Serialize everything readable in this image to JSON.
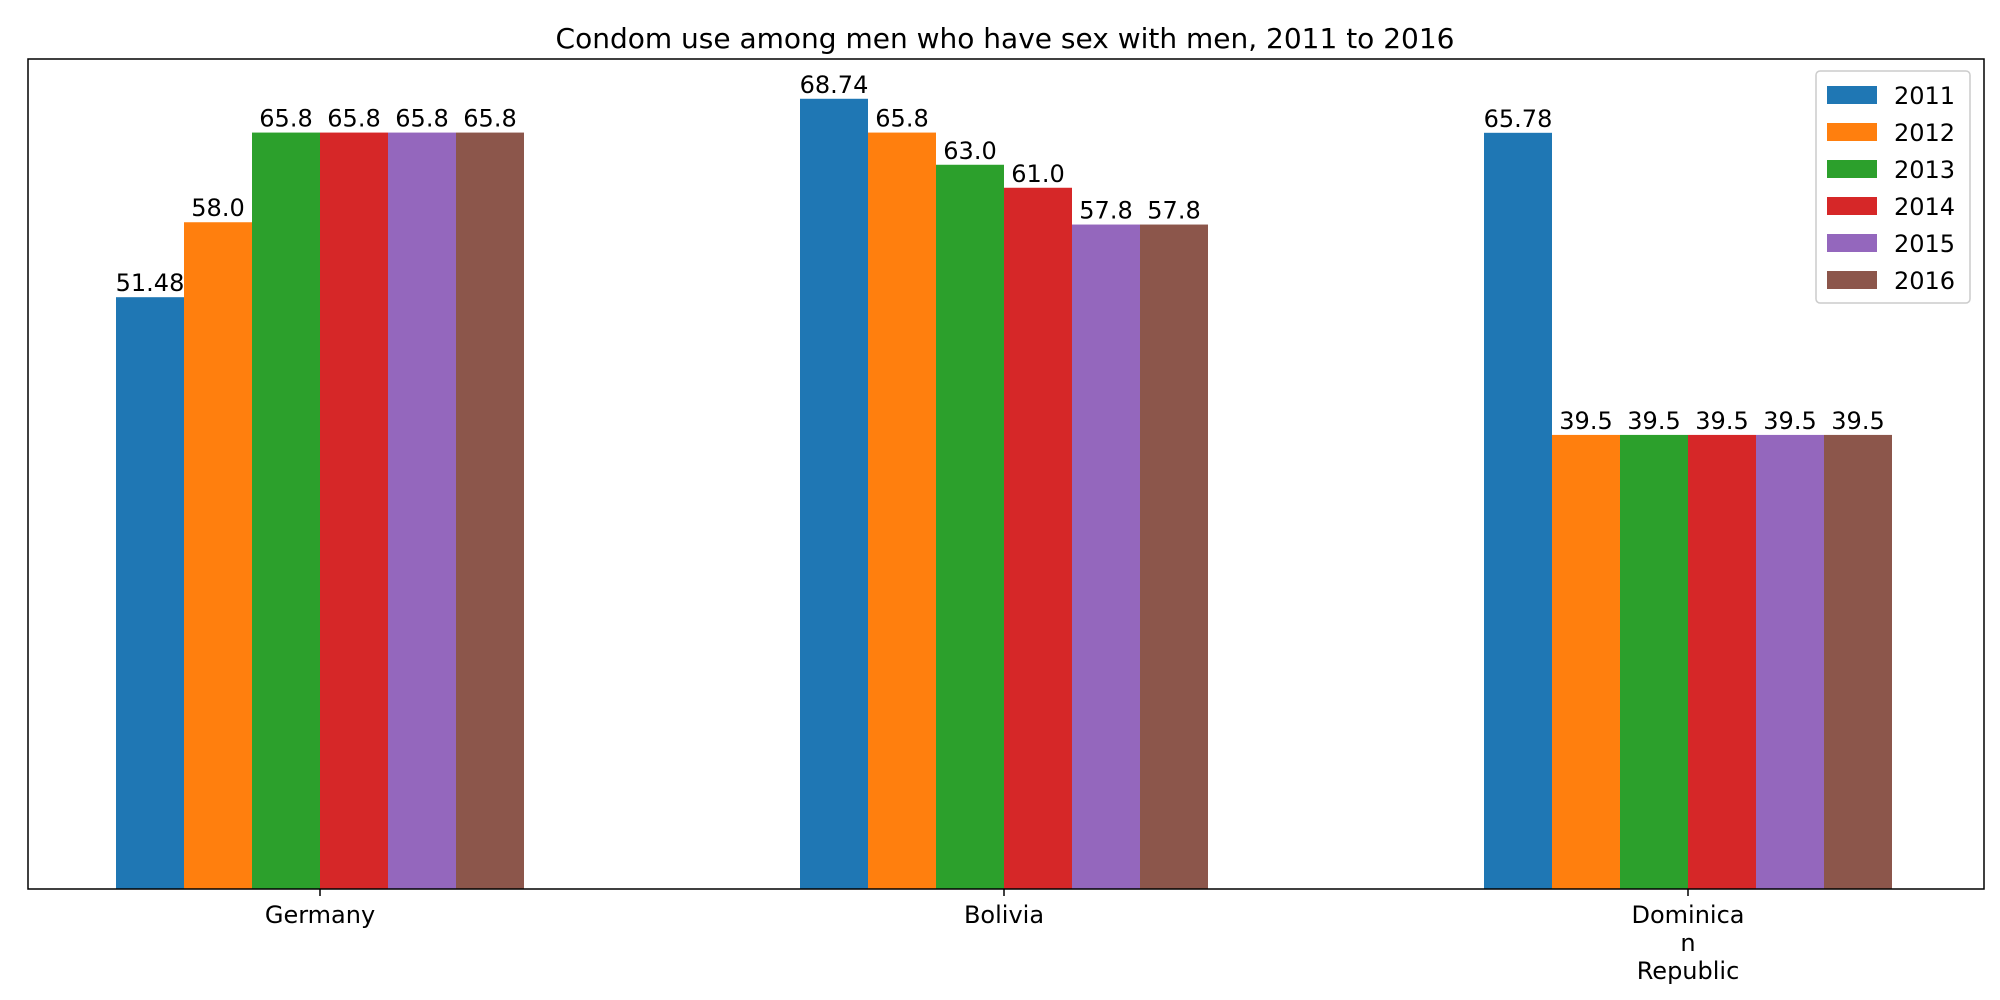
{
  "chart_data": {
    "type": "bar",
    "title": "Condom use among men who have sex with men, 2011 to 2016",
    "xlabel": "",
    "ylabel": "",
    "categories": [
      "Germany",
      "Bolivia",
      "Dominican Republic"
    ],
    "category_tick_lines": [
      [
        "Germany"
      ],
      [
        "Bolivia"
      ],
      [
        "Dominica",
        "n",
        "Republic"
      ]
    ],
    "series": [
      {
        "name": "2011",
        "color": "#1f77b4",
        "values": [
          51.48,
          68.74,
          65.78
        ],
        "labels": [
          "51.48",
          "68.74",
          "65.78"
        ]
      },
      {
        "name": "2012",
        "color": "#ff7f0e",
        "values": [
          58.0,
          65.8,
          39.5
        ],
        "labels": [
          "58.0",
          "65.8",
          "39.5"
        ]
      },
      {
        "name": "2013",
        "color": "#2ca02c",
        "values": [
          65.8,
          63.0,
          39.5
        ],
        "labels": [
          "65.8",
          "63.0",
          "39.5"
        ]
      },
      {
        "name": "2014",
        "color": "#d62728",
        "values": [
          65.8,
          61.0,
          39.5
        ],
        "labels": [
          "65.8",
          "61.0",
          "39.5"
        ]
      },
      {
        "name": "2015",
        "color": "#9467bd",
        "values": [
          65.8,
          57.8,
          39.5
        ],
        "labels": [
          "65.8",
          "57.8",
          "39.5"
        ]
      },
      {
        "name": "2016",
        "color": "#8c564b",
        "values": [
          65.8,
          57.8,
          39.5
        ],
        "labels": [
          "65.8",
          "57.8",
          "39.5"
        ]
      }
    ],
    "ylim": [
      0,
      72.2
    ],
    "y_axis_visible": false,
    "grid": false,
    "legend_position": "top-right"
  }
}
